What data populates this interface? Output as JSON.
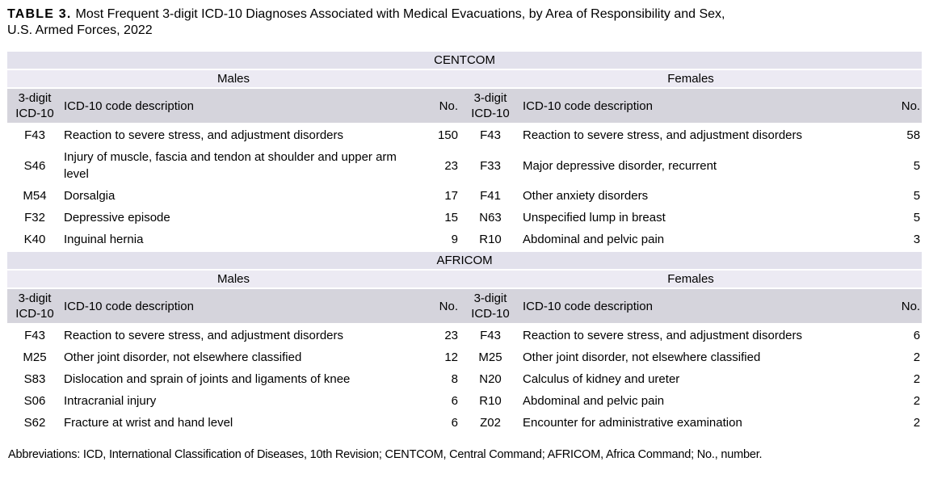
{
  "title": {
    "label": "TABLE 3.",
    "line1": "Most Frequent 3-digit ICD-10 Diagnoses Associated with Medical Evacuations, by Area of Responsibility and Sex,",
    "line2": "U.S. Armed Forces, 2022"
  },
  "colors": {
    "section-band": "#e2e1ec",
    "sex-band": "#eceaf3",
    "header-band": "#d5d4dc",
    "text": "#000000",
    "background": "#ffffff"
  },
  "sex_headers": {
    "male": "Males",
    "female": "Females"
  },
  "column_headers": {
    "code": "3-digit ICD-10",
    "description": "ICD-10 code description",
    "count": "No."
  },
  "sections": [
    {
      "name": "CENTCOM",
      "males": [
        {
          "code": "F43",
          "desc": "Reaction to severe stress, and adjustment disorders",
          "no": "150"
        },
        {
          "code": "S46",
          "desc": "Injury of muscle, fascia and tendon at shoulder and upper arm level",
          "no": "23"
        },
        {
          "code": "M54",
          "desc": "Dorsalgia",
          "no": "17"
        },
        {
          "code": "F32",
          "desc": "Depressive episode",
          "no": "15"
        },
        {
          "code": "K40",
          "desc": "Inguinal hernia",
          "no": "9"
        }
      ],
      "females": [
        {
          "code": "F43",
          "desc": "Reaction to severe stress, and adjustment disorders",
          "no": "58"
        },
        {
          "code": "F33",
          "desc": "Major depressive disorder, recurrent",
          "no": "5"
        },
        {
          "code": "F41",
          "desc": "Other anxiety disorders",
          "no": "5"
        },
        {
          "code": "N63",
          "desc": "Unspecified lump in breast",
          "no": "5"
        },
        {
          "code": "R10",
          "desc": "Abdominal and pelvic pain",
          "no": "3"
        }
      ]
    },
    {
      "name": "AFRICOM",
      "males": [
        {
          "code": "F43",
          "desc": "Reaction to severe stress, and adjustment disorders",
          "no": "23"
        },
        {
          "code": "M25",
          "desc": "Other joint disorder, not elsewhere classified",
          "no": "12"
        },
        {
          "code": "S83",
          "desc": "Dislocation and sprain of joints and ligaments of knee",
          "no": "8"
        },
        {
          "code": "S06",
          "desc": "Intracranial injury",
          "no": "6"
        },
        {
          "code": "S62",
          "desc": "Fracture at wrist and hand level",
          "no": "6"
        }
      ],
      "females": [
        {
          "code": "F43",
          "desc": "Reaction to severe stress, and adjustment disorders",
          "no": "6"
        },
        {
          "code": "M25",
          "desc": "Other joint disorder, not elsewhere classified",
          "no": "2"
        },
        {
          "code": "N20",
          "desc": "Calculus of kidney and ureter",
          "no": "2"
        },
        {
          "code": "R10",
          "desc": "Abdominal and pelvic pain",
          "no": "2"
        },
        {
          "code": "Z02",
          "desc": "Encounter for administrative examination",
          "no": "2"
        }
      ]
    }
  ],
  "footnote": "Abbreviations: ICD, International Classification of Diseases, 10th Revision; CENTCOM, Central Command; AFRICOM, Africa Command; No., number."
}
